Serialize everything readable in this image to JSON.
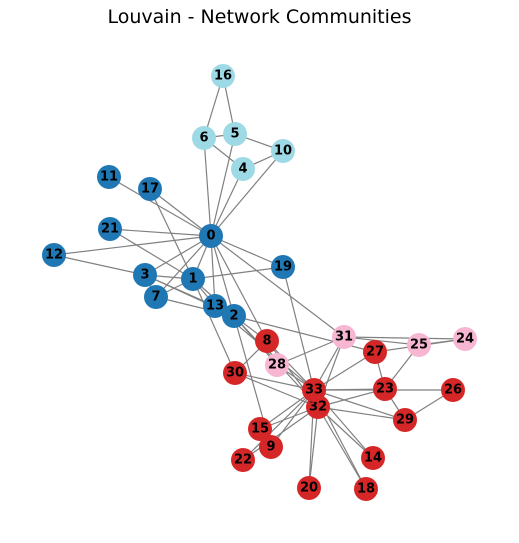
{
  "title": "Louvain - Network Communities",
  "communities": {
    "c0": "#1f77b4",
    "c1": "#9edae5",
    "c2": "#d62728",
    "c3": "#f7b6d2"
  },
  "nodes": [
    {
      "id": "0",
      "community": "c0"
    },
    {
      "id": "1",
      "community": "c0"
    },
    {
      "id": "2",
      "community": "c0"
    },
    {
      "id": "3",
      "community": "c0"
    },
    {
      "id": "4",
      "community": "c1"
    },
    {
      "id": "5",
      "community": "c1"
    },
    {
      "id": "6",
      "community": "c1"
    },
    {
      "id": "7",
      "community": "c0"
    },
    {
      "id": "8",
      "community": "c2"
    },
    {
      "id": "9",
      "community": "c2"
    },
    {
      "id": "10",
      "community": "c1"
    },
    {
      "id": "11",
      "community": "c0"
    },
    {
      "id": "12",
      "community": "c0"
    },
    {
      "id": "13",
      "community": "c0"
    },
    {
      "id": "14",
      "community": "c2"
    },
    {
      "id": "15",
      "community": "c2"
    },
    {
      "id": "16",
      "community": "c1"
    },
    {
      "id": "17",
      "community": "c0"
    },
    {
      "id": "18",
      "community": "c2"
    },
    {
      "id": "19",
      "community": "c0"
    },
    {
      "id": "20",
      "community": "c2"
    },
    {
      "id": "21",
      "community": "c0"
    },
    {
      "id": "22",
      "community": "c2"
    },
    {
      "id": "23",
      "community": "c2"
    },
    {
      "id": "24",
      "community": "c3"
    },
    {
      "id": "25",
      "community": "c3"
    },
    {
      "id": "26",
      "community": "c2"
    },
    {
      "id": "27",
      "community": "c2"
    },
    {
      "id": "28",
      "community": "c3"
    },
    {
      "id": "29",
      "community": "c2"
    },
    {
      "id": "30",
      "community": "c2"
    },
    {
      "id": "31",
      "community": "c3"
    },
    {
      "id": "32",
      "community": "c2"
    },
    {
      "id": "33",
      "community": "c2"
    }
  ],
  "edges": [
    [
      "0",
      "1"
    ],
    [
      "0",
      "2"
    ],
    [
      "0",
      "3"
    ],
    [
      "0",
      "4"
    ],
    [
      "0",
      "5"
    ],
    [
      "0",
      "6"
    ],
    [
      "0",
      "7"
    ],
    [
      "0",
      "8"
    ],
    [
      "0",
      "10"
    ],
    [
      "0",
      "11"
    ],
    [
      "0",
      "12"
    ],
    [
      "0",
      "13"
    ],
    [
      "0",
      "17"
    ],
    [
      "0",
      "19"
    ],
    [
      "0",
      "21"
    ],
    [
      "0",
      "31"
    ],
    [
      "1",
      "2"
    ],
    [
      "1",
      "3"
    ],
    [
      "1",
      "7"
    ],
    [
      "1",
      "13"
    ],
    [
      "1",
      "17"
    ],
    [
      "1",
      "19"
    ],
    [
      "1",
      "21"
    ],
    [
      "1",
      "30"
    ],
    [
      "2",
      "3"
    ],
    [
      "2",
      "7"
    ],
    [
      "2",
      "8"
    ],
    [
      "2",
      "9"
    ],
    [
      "2",
      "13"
    ],
    [
      "2",
      "27"
    ],
    [
      "2",
      "28"
    ],
    [
      "2",
      "32"
    ],
    [
      "3",
      "7"
    ],
    [
      "3",
      "12"
    ],
    [
      "3",
      "13"
    ],
    [
      "4",
      "6"
    ],
    [
      "4",
      "10"
    ],
    [
      "5",
      "6"
    ],
    [
      "5",
      "10"
    ],
    [
      "5",
      "16"
    ],
    [
      "6",
      "16"
    ],
    [
      "8",
      "30"
    ],
    [
      "8",
      "32"
    ],
    [
      "8",
      "33"
    ],
    [
      "9",
      "33"
    ],
    [
      "13",
      "33"
    ],
    [
      "14",
      "32"
    ],
    [
      "14",
      "33"
    ],
    [
      "15",
      "32"
    ],
    [
      "15",
      "33"
    ],
    [
      "18",
      "32"
    ],
    [
      "18",
      "33"
    ],
    [
      "19",
      "33"
    ],
    [
      "20",
      "32"
    ],
    [
      "20",
      "33"
    ],
    [
      "22",
      "32"
    ],
    [
      "22",
      "33"
    ],
    [
      "23",
      "25"
    ],
    [
      "23",
      "27"
    ],
    [
      "23",
      "29"
    ],
    [
      "23",
      "32"
    ],
    [
      "23",
      "33"
    ],
    [
      "24",
      "25"
    ],
    [
      "24",
      "27"
    ],
    [
      "24",
      "31"
    ],
    [
      "25",
      "31"
    ],
    [
      "26",
      "29"
    ],
    [
      "26",
      "33"
    ],
    [
      "27",
      "33"
    ],
    [
      "28",
      "31"
    ],
    [
      "28",
      "33"
    ],
    [
      "29",
      "32"
    ],
    [
      "29",
      "33"
    ],
    [
      "30",
      "32"
    ],
    [
      "30",
      "33"
    ],
    [
      "31",
      "32"
    ],
    [
      "31",
      "33"
    ],
    [
      "32",
      "33"
    ]
  ]
}
